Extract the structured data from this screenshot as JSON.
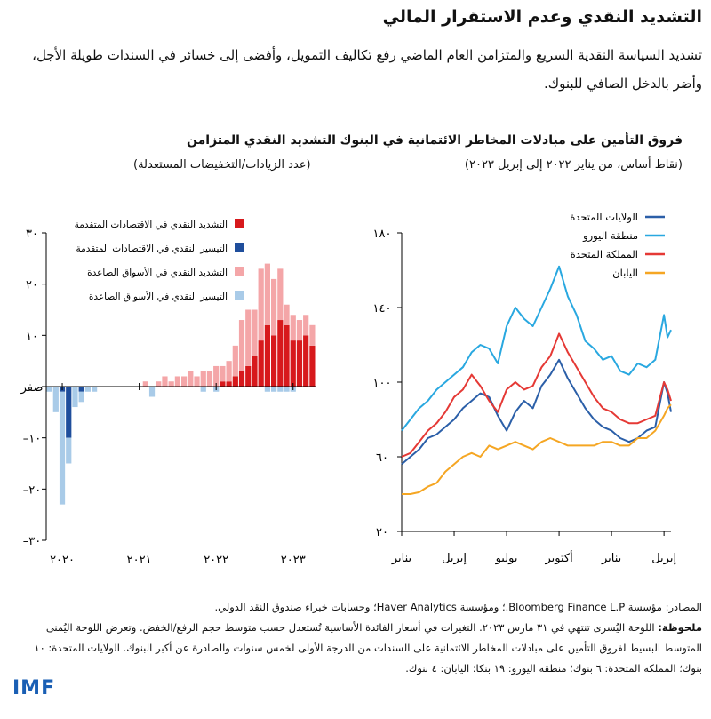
{
  "header": {
    "title": "التشديد النقدي وعدم الاستقرار المالي",
    "subtitle": "تشديد السياسة النقدية السريع والمتزامن العام الماضي رفع تكاليف التمويل، وأفضى إلى خسائر في السندات طويلة الأجل، وأضر بالدخل الصافي للبنوك."
  },
  "left_panel": {
    "title": "التشديد النقدي المتزامن",
    "subtitle": "(عدد الزيادات/التخفيضات المستعدلة)"
  },
  "right_panel": {
    "title": "فروق التأمين على مبادلات المخاطر الائتمانية في البنوك",
    "subtitle": "(نقاط أساس، من يناير ٢٠٢٢ إلى إبريل ٢٠٢٣)"
  },
  "colors": {
    "dark_red": "#d7191c",
    "light_red": "#f4a6a8",
    "dark_blue": "#1f4e9c",
    "light_blue": "#a9cbe8",
    "us": "#2b5fa8",
    "euro": "#29a8e0",
    "uk": "#e53935",
    "japan": "#f5a623"
  },
  "chart_data": [
    {
      "type": "bar",
      "stacked": true,
      "title": "التشديد النقدي المتزامن",
      "ylabel": "(عدد الزيادات/التخفيضات المستعدلة)",
      "ylim": [
        -30,
        30
      ],
      "yticks": [
        {
          "value": 30,
          "label": "٣٠"
        },
        {
          "value": 20,
          "label": "٢٠"
        },
        {
          "value": 10,
          "label": "١٠"
        },
        {
          "value": 0,
          "label": "صفر"
        },
        {
          "value": -10,
          "label": "١٠–"
        },
        {
          "value": -20,
          "label": "٢٠–"
        },
        {
          "value": -30,
          "label": "٣٠–"
        }
      ],
      "xticks": [
        {
          "index": 2,
          "label": "٢٠٢٠"
        },
        {
          "index": 14,
          "label": "٢٠٢١"
        },
        {
          "index": 26,
          "label": "٢٠٢٢"
        },
        {
          "index": 38,
          "label": "٢٠٢٣"
        }
      ],
      "legend": [
        "التشديد النقدي في الاقتصادات المتقدمة",
        "التيسير النقدي في الاقتصادات المتقدمة",
        "التشديد النقدي في الأسواق الصاعدة",
        "التيسير النقدي في الأسواق الصاعدة"
      ],
      "series": [
        {
          "name": "التشديد النقدي في الاقتصادات المتقدمة",
          "color_key": "dark_red",
          "values": [
            0,
            0,
            0,
            0,
            0,
            0,
            0,
            0,
            0,
            0,
            0,
            0,
            0,
            0,
            0,
            0,
            0,
            0,
            0,
            0,
            0,
            0,
            0,
            0,
            0,
            0,
            0,
            1,
            1,
            2,
            3,
            4,
            6,
            9,
            12,
            10,
            13,
            12,
            9,
            9,
            10,
            8
          ]
        },
        {
          "name": "التيسير النقدي في الاقتصادات المتقدمة",
          "color_key": "dark_blue",
          "values": [
            0,
            0,
            -1,
            -10,
            0,
            -1,
            0,
            0,
            0,
            0,
            0,
            0,
            0,
            0,
            0,
            0,
            0,
            0,
            0,
            0,
            0,
            0,
            0,
            0,
            0,
            0,
            0,
            0,
            0,
            0,
            0,
            0,
            0,
            0,
            0,
            0,
            0,
            0,
            0,
            0,
            0,
            0
          ]
        },
        {
          "name": "التشديد النقدي في الأسواق الصاعدة",
          "color_key": "light_red",
          "values": [
            0,
            0,
            0,
            0,
            0,
            0,
            0,
            0,
            0,
            0,
            0,
            0,
            0,
            0,
            0,
            1,
            0,
            1,
            2,
            1,
            2,
            2,
            3,
            2,
            3,
            3,
            4,
            3,
            4,
            6,
            10,
            11,
            9,
            14,
            12,
            11,
            10,
            4,
            5,
            4,
            4,
            4
          ]
        },
        {
          "name": "التيسير النقدي في الأسواق الصاعدة",
          "color_key": "light_blue",
          "values": [
            -1,
            -5,
            -22,
            -5,
            -4,
            -2,
            -1,
            -1,
            0,
            0,
            0,
            0,
            0,
            0,
            0,
            0,
            -2,
            0,
            0,
            0,
            0,
            0,
            0,
            0,
            -1,
            0,
            -1,
            0,
            0,
            0,
            0,
            0,
            0,
            0,
            -1,
            -1,
            -1,
            -1,
            -1,
            0,
            0,
            0
          ]
        }
      ]
    },
    {
      "type": "line",
      "title": "فروق التأمين على مبادلات المخاطر الائتمانية في البنوك",
      "ylabel": "(نقاط أساس، من يناير ٢٠٢٢ إلى إبريل ٢٠٢٣)",
      "ylim": [
        20,
        180
      ],
      "yticks": [
        {
          "value": 180,
          "label": "١٨٠"
        },
        {
          "value": 140,
          "label": "١٤٠"
        },
        {
          "value": 100,
          "label": "١٠٠"
        },
        {
          "value": 60,
          "label": "٦٠"
        },
        {
          "value": 20,
          "label": "٢٠"
        }
      ],
      "xlim": [
        0,
        15.4
      ],
      "xticks": [
        {
          "value": 0,
          "label": "يناير"
        },
        {
          "value": 3,
          "label": "إبريل"
        },
        {
          "value": 6,
          "label": "يوليو"
        },
        {
          "value": 9,
          "label": "أكتوبر"
        },
        {
          "value": 12,
          "label": "يناير"
        },
        {
          "value": 15,
          "label": "إبريل"
        }
      ],
      "series": [
        {
          "name": "الولايات المتحدة",
          "color_key": "us",
          "x": [
            0,
            0.5,
            1,
            1.5,
            2,
            2.5,
            3,
            3.5,
            4,
            4.5,
            5,
            5.5,
            6,
            6.5,
            7,
            7.5,
            8,
            8.5,
            9,
            9.5,
            10,
            10.5,
            11,
            11.5,
            12,
            12.5,
            13,
            13.5,
            14,
            14.5,
            15,
            15.2,
            15.4
          ],
          "y": [
            56,
            60,
            64,
            70,
            72,
            76,
            80,
            86,
            90,
            94,
            92,
            82,
            74,
            84,
            90,
            86,
            98,
            104,
            112,
            102,
            94,
            86,
            80,
            76,
            74,
            70,
            68,
            70,
            74,
            76,
            100,
            94,
            84
          ]
        },
        {
          "name": "منطقة اليورو",
          "color_key": "euro",
          "x": [
            0,
            0.5,
            1,
            1.5,
            2,
            2.5,
            3,
            3.5,
            4,
            4.5,
            5,
            5.5,
            6,
            6.5,
            7,
            7.5,
            8,
            8.5,
            9,
            9.5,
            10,
            10.5,
            11,
            11.5,
            12,
            12.5,
            13,
            13.5,
            14,
            14.5,
            15,
            15.2,
            15.4
          ],
          "y": [
            74,
            80,
            86,
            90,
            96,
            100,
            104,
            108,
            116,
            120,
            118,
            110,
            130,
            140,
            134,
            130,
            140,
            150,
            162,
            146,
            136,
            122,
            118,
            112,
            114,
            106,
            104,
            110,
            108,
            112,
            136,
            124,
            128
          ]
        },
        {
          "name": "المملكة المتحدة",
          "color_key": "uk",
          "x": [
            0,
            0.5,
            1,
            1.5,
            2,
            2.5,
            3,
            3.5,
            4,
            4.5,
            5,
            5.5,
            6,
            6.5,
            7,
            7.5,
            8,
            8.5,
            9,
            9.5,
            10,
            10.5,
            11,
            11.5,
            12,
            12.5,
            13,
            13.5,
            14,
            14.5,
            15,
            15.2,
            15.4
          ],
          "y": [
            60,
            62,
            68,
            74,
            78,
            84,
            92,
            96,
            104,
            98,
            90,
            84,
            96,
            100,
            96,
            98,
            108,
            114,
            126,
            116,
            108,
            100,
            92,
            86,
            84,
            80,
            78,
            78,
            80,
            82,
            100,
            96,
            90
          ]
        },
        {
          "name": "اليابان",
          "color_key": "japan",
          "x": [
            0,
            0.5,
            1,
            1.5,
            2,
            2.5,
            3,
            3.5,
            4,
            4.5,
            5,
            5.5,
            6,
            6.5,
            7,
            7.5,
            8,
            8.5,
            9,
            9.5,
            10,
            10.5,
            11,
            11.5,
            12,
            12.5,
            13,
            13.5,
            14,
            14.5,
            15,
            15.2,
            15.4
          ],
          "y": [
            40,
            40,
            41,
            44,
            46,
            52,
            56,
            60,
            62,
            60,
            66,
            64,
            66,
            68,
            66,
            64,
            68,
            70,
            68,
            66,
            66,
            66,
            66,
            68,
            68,
            66,
            66,
            70,
            70,
            74,
            82,
            86,
            88
          ]
        }
      ]
    }
  ],
  "footer": {
    "source": "المصادر: مؤسسة Bloomberg Finance L.P.؛ ومؤسسة Haver Analytics؛ وحسابات خبراء صندوق النقد الدولي.",
    "note_label": "ملحوظة:",
    "note": "اللوحة اليُسرى تنتهي في ٣١ مارس ٢٠٢٣. التغيرات في أسعار الفائدة الأساسية تُستعدل حسب متوسط حجم الرفع/الخفض. وتعرض اللوحة اليُمنى المتوسط البسيط لفروق التأمين على مبادلات المخاطر الائتمانية على السندات من الدرجة الأولى لخمس سنوات والصادرة عن أكبر البنوك. الولايات المتحدة: ١٠ بنوك؛ المملكة المتحدة: ٦ بنوك؛ منطقة اليورو: ١٩ بنكا؛ اليابان: ٤ بنوك.",
    "logo": "IMF"
  }
}
